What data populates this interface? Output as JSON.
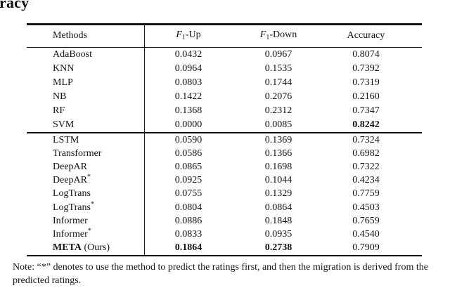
{
  "colors": {
    "text": "#141414",
    "background": "#ffffff",
    "rule": "#141414"
  },
  "heading_fragment": "racy",
  "table": {
    "headers": {
      "methods": "Methods",
      "f1_up": {
        "letter": "F",
        "sub": "1",
        "rest": "-Up"
      },
      "f1_down": {
        "letter": "F",
        "sub": "1",
        "rest": "-Down"
      },
      "accuracy": "Accuracy"
    },
    "group1": [
      {
        "method": "AdaBoost",
        "f1up": "0.0432",
        "f1down": "0.0967",
        "accuracy": "0.8074"
      },
      {
        "method": "KNN",
        "f1up": "0.0964",
        "f1down": "0.1535",
        "accuracy": "0.7392"
      },
      {
        "method": "MLP",
        "f1up": "0.0803",
        "f1down": "0.1744",
        "accuracy": "0.7319"
      },
      {
        "method": "NB",
        "f1up": "0.1422",
        "f1down": "0.2076",
        "accuracy": "0.2160"
      },
      {
        "method": "RF",
        "f1up": "0.1368",
        "f1down": "0.2312",
        "accuracy": "0.7347"
      },
      {
        "method": "SVM",
        "f1up": "0.0000",
        "f1down": "0.0085",
        "accuracy": "0.8242",
        "bold": [
          "accuracy"
        ]
      }
    ],
    "group2": [
      {
        "method": "LSTM",
        "f1up": "0.0590",
        "f1down": "0.1369",
        "accuracy": "0.7324"
      },
      {
        "method": "Transformer",
        "f1up": "0.0586",
        "f1down": "0.1366",
        "accuracy": "0.6982"
      },
      {
        "method": "DeepAR",
        "f1up": "0.0865",
        "f1down": "0.1698",
        "accuracy": "0.7322"
      },
      {
        "method": "DeepAR",
        "star": true,
        "f1up": "0.0925",
        "f1down": "0.1044",
        "accuracy": "0.4234"
      },
      {
        "method": "LogTrans",
        "f1up": "0.0755",
        "f1down": "0.1329",
        "accuracy": "0.7759"
      },
      {
        "method": "LogTrans",
        "star": true,
        "f1up": "0.0804",
        "f1down": "0.0864",
        "accuracy": "0.4503"
      },
      {
        "method": "Informer",
        "f1up": "0.0886",
        "f1down": "0.1848",
        "accuracy": "0.7659"
      },
      {
        "method": "Informer",
        "star": true,
        "f1up": "0.0833",
        "f1down": "0.0935",
        "accuracy": "0.4540"
      },
      {
        "method": "META",
        "suffix": " (Ours)",
        "f1up": "0.1864",
        "f1down": "0.2738",
        "accuracy": "0.7909",
        "bold": [
          "method",
          "f1up",
          "f1down"
        ]
      }
    ]
  },
  "note": "Note: “*” denotes to use the method to predict the ratings first, and then the migration is derived from the predicted ratings."
}
